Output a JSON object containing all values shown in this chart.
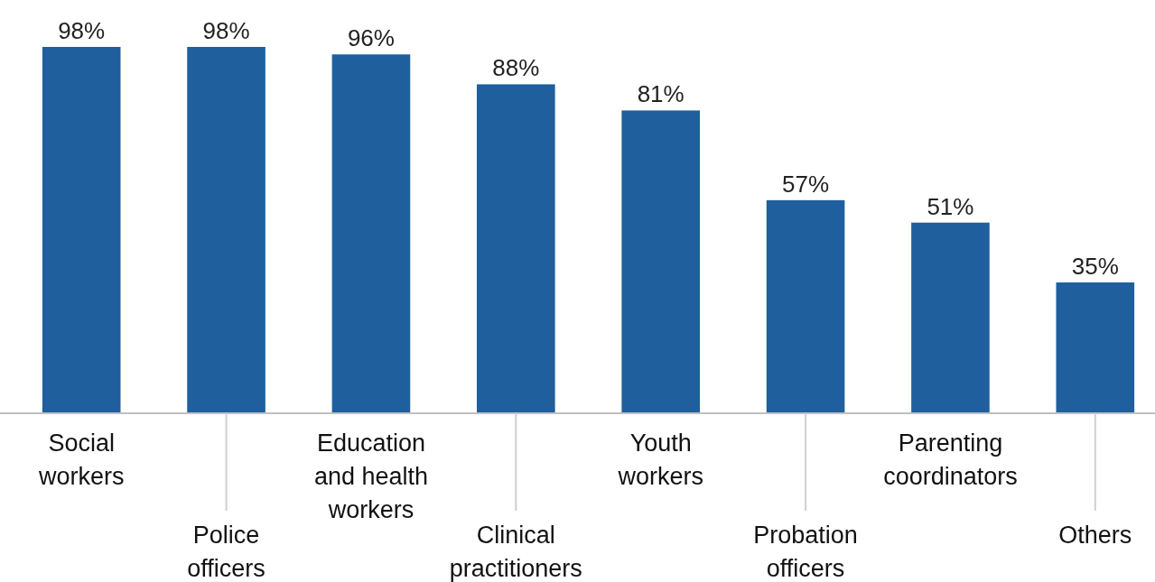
{
  "chart_data": {
    "type": "bar",
    "categories": [
      "Social workers",
      "Police officers",
      "Education and health workers",
      "Clinical practitioners",
      "Youth workers",
      "Probation officers",
      "Parenting coordinators",
      "Others"
    ],
    "values": [
      98,
      98,
      96,
      88,
      81,
      57,
      51,
      35
    ],
    "color": "#1f5f9e",
    "value_labels": [
      "98%",
      "98%",
      "96%",
      "88%",
      "81%",
      "57%",
      "51%",
      "35%"
    ],
    "data_labels": false
  }
}
